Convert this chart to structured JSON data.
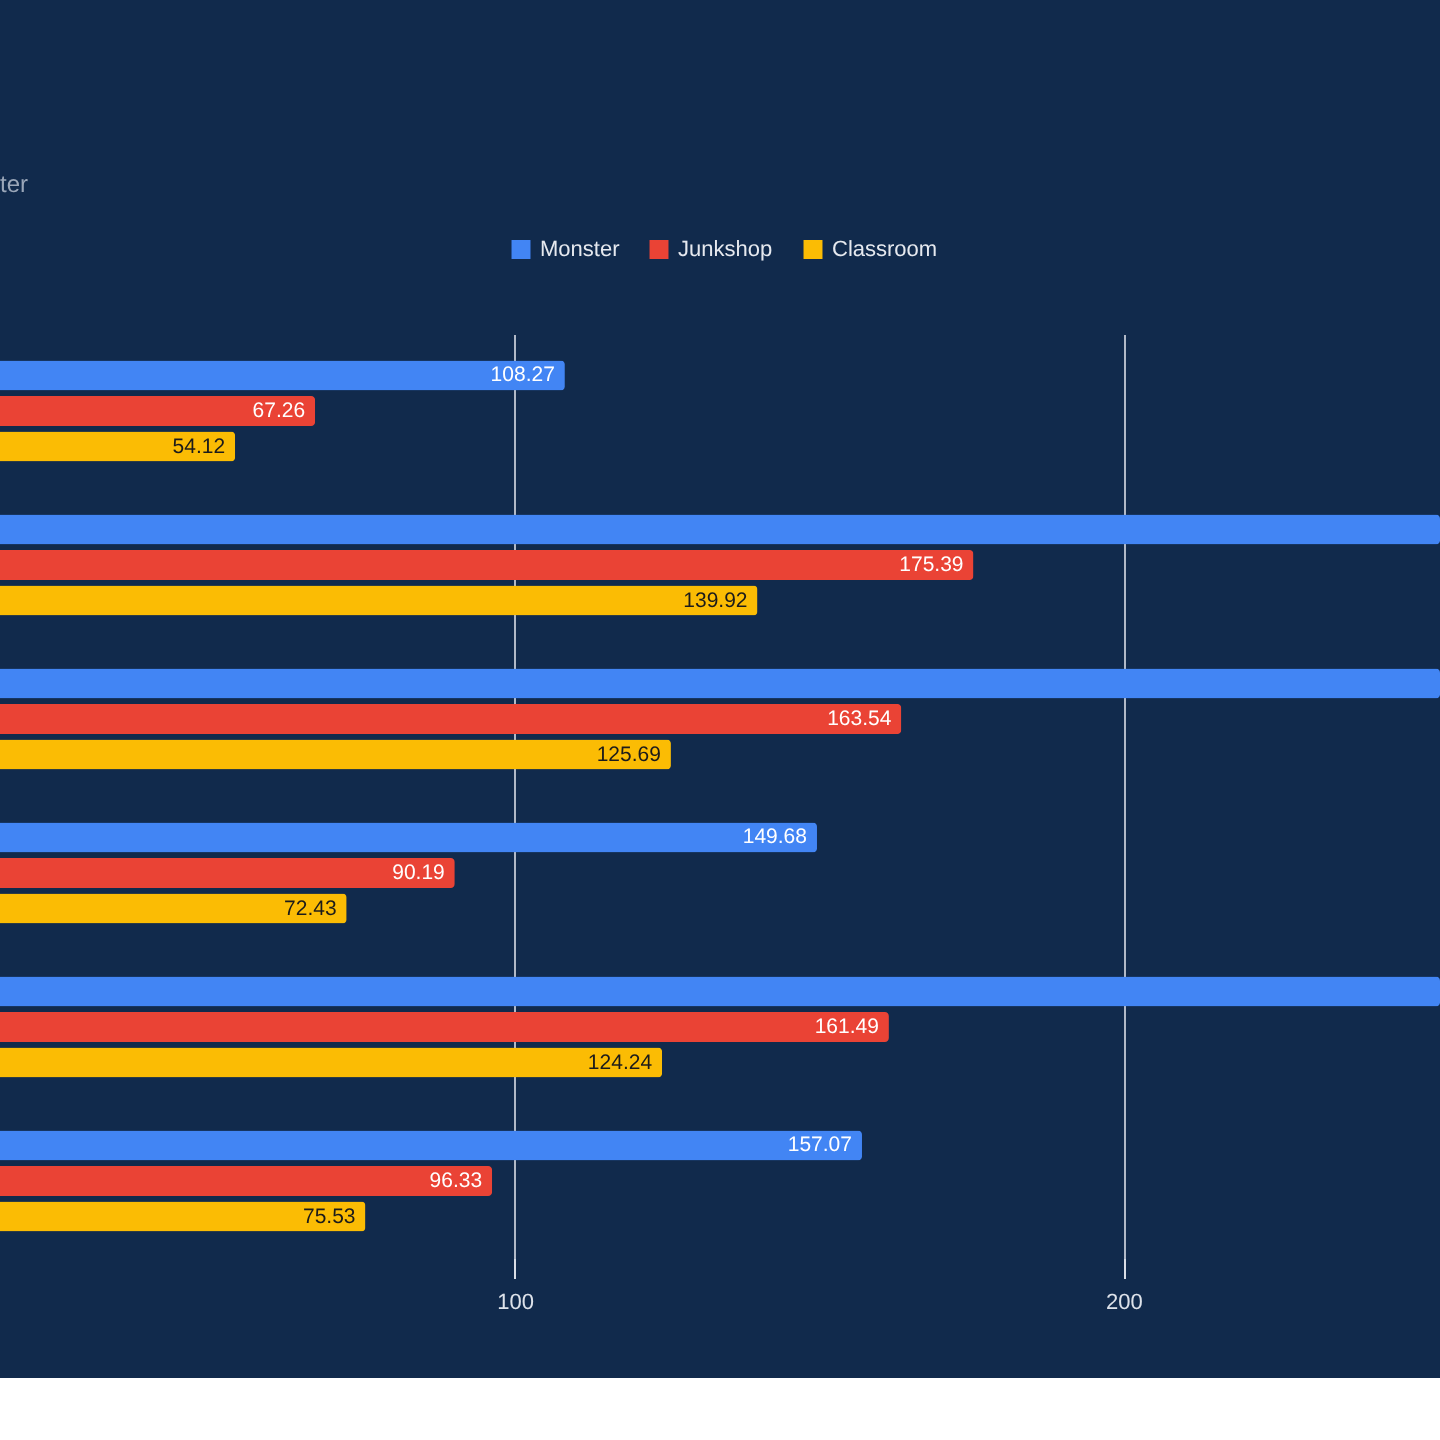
{
  "chart_data": {
    "type": "bar",
    "orientation": "horizontal",
    "title": "ter",
    "categories": [
      null,
      null,
      null,
      null,
      null,
      null
    ],
    "series": [
      {
        "name": "Monster",
        "color": "#4285f4",
        "values": [
          108.27,
          252,
          252,
          149.68,
          252,
          157.07
        ],
        "value_labels": [
          "108.27",
          null,
          null,
          "149.68",
          null,
          "157.07"
        ]
      },
      {
        "name": "Junkshop",
        "color": "#ea4335",
        "values": [
          67.26,
          175.39,
          163.54,
          90.19,
          161.49,
          96.33
        ],
        "value_labels": [
          "67.26",
          "175.39",
          "163.54",
          "90.19",
          "161.49",
          "96.33"
        ]
      },
      {
        "name": "Classroom",
        "color": "#fbbc04",
        "values": [
          54.12,
          139.92,
          125.69,
          72.43,
          124.24,
          75.53
        ],
        "value_labels": [
          "54.12",
          "139.92",
          "125.69",
          "72.43",
          "124.24",
          "75.53"
        ]
      }
    ],
    "xlim": [
      15.5,
      252
    ],
    "xticks": [
      100,
      200
    ],
    "grid": "x",
    "legend": "top",
    "tick_labels": "x"
  }
}
